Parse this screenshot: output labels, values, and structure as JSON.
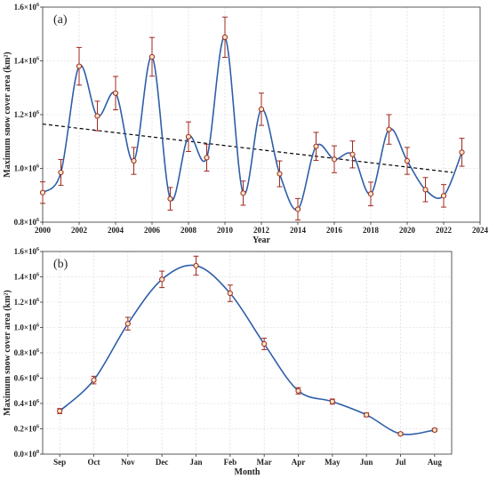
{
  "chart_data": [
    {
      "panel": "(a)",
      "type": "line",
      "xlabel": "Year",
      "ylabel": "Maximum snow cover area (km²)",
      "xlim": [
        2000,
        2024
      ],
      "ylim": [
        800000,
        1600000
      ],
      "xticks": [
        2000,
        2002,
        2004,
        2006,
        2008,
        2010,
        2012,
        2014,
        2016,
        2018,
        2020,
        2022,
        2024
      ],
      "yticks": [
        {
          "value": 800000,
          "mant": "0.8×10",
          "exp": "6"
        },
        {
          "value": 1000000,
          "mant": "1.0×10",
          "exp": "6"
        },
        {
          "value": 1200000,
          "mant": "1.2×10",
          "exp": "6"
        },
        {
          "value": 1400000,
          "mant": "1.4×10",
          "exp": "6"
        },
        {
          "value": 1600000,
          "mant": "1.6×10",
          "exp": "6"
        }
      ],
      "grid": true,
      "x": [
        2000,
        2001,
        2002,
        2003,
        2004,
        2005,
        2006,
        2007,
        2008,
        2009,
        2010,
        2011,
        2012,
        2013,
        2014,
        2015,
        2016,
        2017,
        2018,
        2019,
        2020,
        2021,
        2022,
        2023
      ],
      "y": [
        910000,
        985000,
        1380000,
        1195000,
        1280000,
        1028000,
        1415000,
        887000,
        1118000,
        1040000,
        1488000,
        908000,
        1220000,
        980000,
        848000,
        1082000,
        1034000,
        1052000,
        905000,
        1145000,
        1028000,
        921000,
        898000,
        1060000
      ],
      "error": [
        40000,
        48000,
        70000,
        55000,
        62000,
        50000,
        72000,
        42000,
        55000,
        50000,
        75000,
        45000,
        60000,
        48000,
        40000,
        52000,
        50000,
        50000,
        44000,
        55000,
        50000,
        45000,
        42000,
        52000
      ],
      "trend": {
        "x": [
          2000,
          2022.5
        ],
        "y": [
          1165000,
          985000
        ]
      },
      "colors": {
        "line": "#2e5fa8",
        "error": "#a0291d",
        "marker_fill": "#f4e6c8",
        "marker_edge": "#a0291d",
        "trend": "#000000"
      }
    },
    {
      "panel": "(b)",
      "type": "line",
      "xlabel": "Month",
      "ylabel": "Maximum snow cover area (km²)",
      "categories": [
        "Sep",
        "Oct",
        "Nov",
        "Dec",
        "Jan",
        "Feb",
        "Mar",
        "Apr",
        "May",
        "Jun",
        "Jul",
        "Aug"
      ],
      "ylim": [
        0,
        1600000
      ],
      "yticks": [
        {
          "value": 0,
          "mant": "0.0×10",
          "exp": "0"
        },
        {
          "value": 200000,
          "mant": "0.2×10",
          "exp": "6"
        },
        {
          "value": 400000,
          "mant": "0.4×10",
          "exp": "6"
        },
        {
          "value": 600000,
          "mant": "0.6×10",
          "exp": "6"
        },
        {
          "value": 800000,
          "mant": "0.8×10",
          "exp": "6"
        },
        {
          "value": 1000000,
          "mant": "1.0×10",
          "exp": "6"
        },
        {
          "value": 1200000,
          "mant": "1.2×10",
          "exp": "6"
        },
        {
          "value": 1400000,
          "mant": "1.4×10",
          "exp": "6"
        },
        {
          "value": 1600000,
          "mant": "1.6×10",
          "exp": "6"
        }
      ],
      "grid": true,
      "values": [
        340000,
        585000,
        1030000,
        1380000,
        1488000,
        1270000,
        870000,
        500000,
        415000,
        310000,
        160000,
        190000
      ],
      "error": [
        20000,
        30000,
        50000,
        65000,
        75000,
        65000,
        45000,
        25000,
        20000,
        15000,
        10000,
        12000
      ],
      "colors": {
        "line": "#2e5fa8",
        "error": "#a0291d",
        "marker_fill": "#f4e6c8",
        "marker_edge": "#a0291d"
      }
    }
  ]
}
